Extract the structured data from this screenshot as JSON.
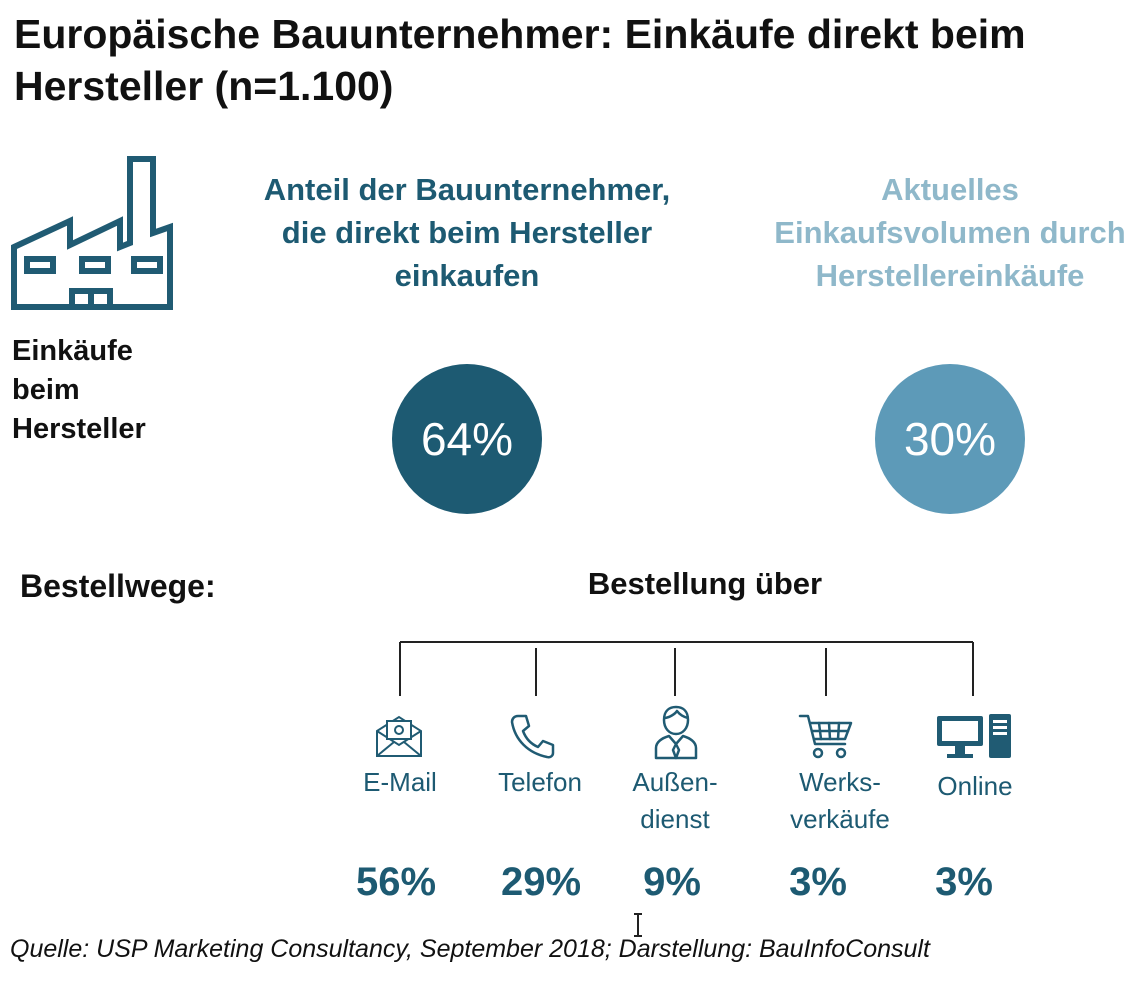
{
  "title": "Europäische Bauunternehmer: Einkäufe direkt beim Hersteller (n=1.100)",
  "factory": {
    "icon": "factory-icon",
    "label": "Einkäufe beim Hersteller"
  },
  "colors": {
    "dark_teal": "#1d5a72",
    "light_blue": "#5d9ab8",
    "heading_light": "#8fb8ca",
    "icon_teal": "#205b73",
    "line_dark": "#222222"
  },
  "metrics": [
    {
      "heading": "Anteil der Bauunternehmer, die direkt beim Hersteller einkaufen",
      "value": "64%"
    },
    {
      "heading": "Aktuelles Einkaufsvolumen durch Herstellereinkäufe",
      "value": "30%"
    }
  ],
  "orders": {
    "section_label": "Bestellwege:",
    "tree_title": "Bestellung über"
  },
  "chart_data": {
    "type": "bar",
    "title": "Bestellung über",
    "categories": [
      "E-Mail",
      "Telefon",
      "Außendienst",
      "Werksverkäufe",
      "Online"
    ],
    "values": [
      56,
      29,
      9,
      3,
      3
    ],
    "value_labels": [
      "56%",
      "29%",
      "9%",
      "3%",
      "3%"
    ],
    "unit": "%"
  },
  "channels": [
    {
      "name": "E-Mail",
      "value": "56%",
      "icon": "email-icon"
    },
    {
      "name": "Telefon",
      "value": "29%",
      "icon": "phone-icon"
    },
    {
      "name": "Außen-dienst",
      "value": "9%",
      "icon": "sales-rep-icon"
    },
    {
      "name": "Werks-verkäufe",
      "value": "3%",
      "icon": "shopping-cart-icon"
    },
    {
      "name": "Online",
      "value": "3%",
      "icon": "computer-icon"
    }
  ],
  "source": "Quelle: USP Marketing Consultancy, September 2018; Darstellung: BauInfoConsult"
}
